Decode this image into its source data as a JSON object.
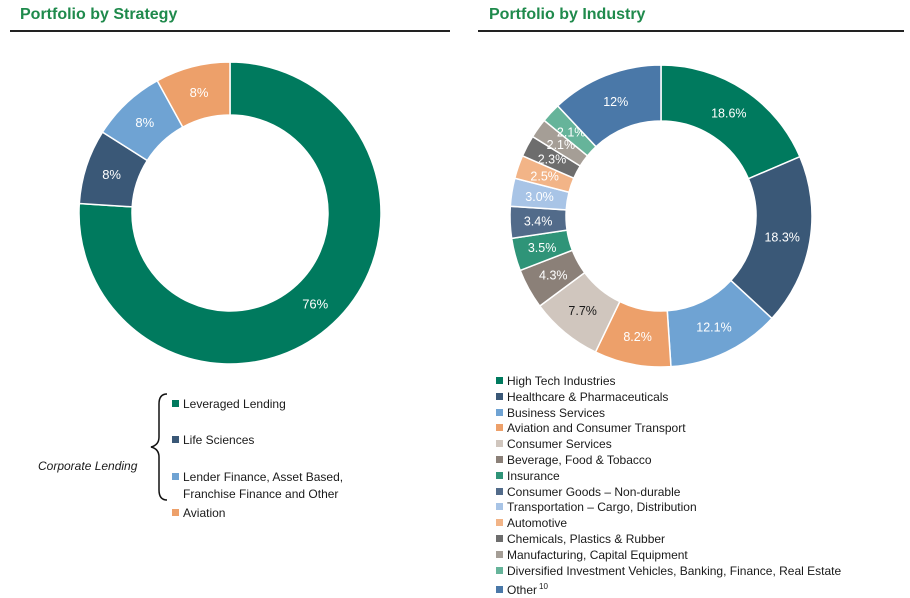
{
  "chart_data": [
    {
      "type": "pie",
      "title": "Portfolio by Strategy",
      "categories": [
        "Leveraged Lending",
        "Life Sciences",
        "Lender Finance, Asset Based, Franchise Finance and Other",
        "Aviation"
      ],
      "values": [
        76,
        8,
        8,
        8
      ],
      "labels": [
        "76%",
        "8%",
        "8%",
        "8%"
      ],
      "colors": [
        "#007a5e",
        "#3a5877",
        "#6fa3d3",
        "#eda06a"
      ],
      "label_colors": [
        "#ffffff",
        "#ffffff",
        "#ffffff",
        "#ffffff"
      ],
      "legend": [
        "Leveraged Lending",
        "Life Sciences",
        "Lender Finance, Asset Based,",
        "Franchise Finance and Other",
        "Aviation"
      ],
      "group_label": "Corporate Lending"
    },
    {
      "type": "pie",
      "title": "Portfolio by Industry",
      "categories": [
        "High Tech Industries",
        "Healthcare & Pharmaceuticals",
        "Business Services",
        "Aviation and Consumer Transport",
        "Consumer Services",
        "Beverage, Food & Tobacco",
        "Insurance",
        "Consumer Goods – Non-durable",
        "Transportation – Cargo, Distribution",
        "Automotive",
        "Chemicals, Plastics & Rubber",
        "Manufacturing, Capital Equipment",
        "Diversified Investment Vehicles, Banking, Finance, Real Estate",
        "Other"
      ],
      "values": [
        18.6,
        18.3,
        12.1,
        8.2,
        7.7,
        4.3,
        3.5,
        3.4,
        3.0,
        2.5,
        2.3,
        2.1,
        2.1,
        12
      ],
      "labels": [
        "18.6%",
        "18.3%",
        "12.1%",
        "8.2%",
        "7.7%",
        "4.3%",
        "3.5%",
        "3.4%",
        "3.0%",
        "2.5%",
        "2.3%",
        "2.1%",
        "2.1%",
        "12%"
      ],
      "colors": [
        "#007a5e",
        "#3a5877",
        "#6fa3d3",
        "#eda06a",
        "#d0c6be",
        "#8b8078",
        "#2f9478",
        "#526b8a",
        "#a8c4e6",
        "#f2b487",
        "#6d6d6d",
        "#a59e96",
        "#66b49a",
        "#4a78a8"
      ],
      "label_colors": [
        "#ffffff",
        "#ffffff",
        "#ffffff",
        "#ffffff",
        "#1a1a1a",
        "#ffffff",
        "#ffffff",
        "#ffffff",
        "#ffffff",
        "#ffffff",
        "#ffffff",
        "#ffffff",
        "#ffffff",
        "#ffffff"
      ],
      "legend_superscript": "10"
    }
  ]
}
